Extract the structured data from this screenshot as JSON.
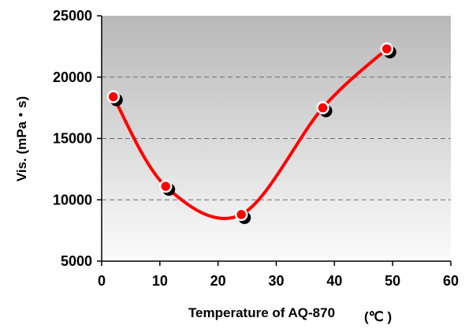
{
  "chart_data": {
    "type": "line",
    "title": "",
    "xlabel": "Temperature of AQ-870",
    "xlabel_unit": "(℃ )",
    "ylabel": "Vis. (mPa・s)",
    "xlim": [
      0,
      60
    ],
    "ylim": [
      5000,
      25000
    ],
    "x_ticks": [
      "0",
      "10",
      "20",
      "30",
      "40",
      "50",
      "60"
    ],
    "y_ticks": [
      "5000",
      "10000",
      "15000",
      "20000",
      "25000"
    ],
    "grid": "horizontal dashed",
    "legend": "none",
    "background": "gradient gray",
    "series": [
      {
        "x": [
          2,
          11,
          24,
          38,
          49
        ],
        "values": [
          18400,
          11100,
          8800,
          17500,
          22300
        ],
        "color": "#ff0000",
        "marker_fill": "#ff0000",
        "marker_stroke": "#ffffff",
        "shadow_marker_color": "#000000",
        "smooth": true
      }
    ]
  }
}
